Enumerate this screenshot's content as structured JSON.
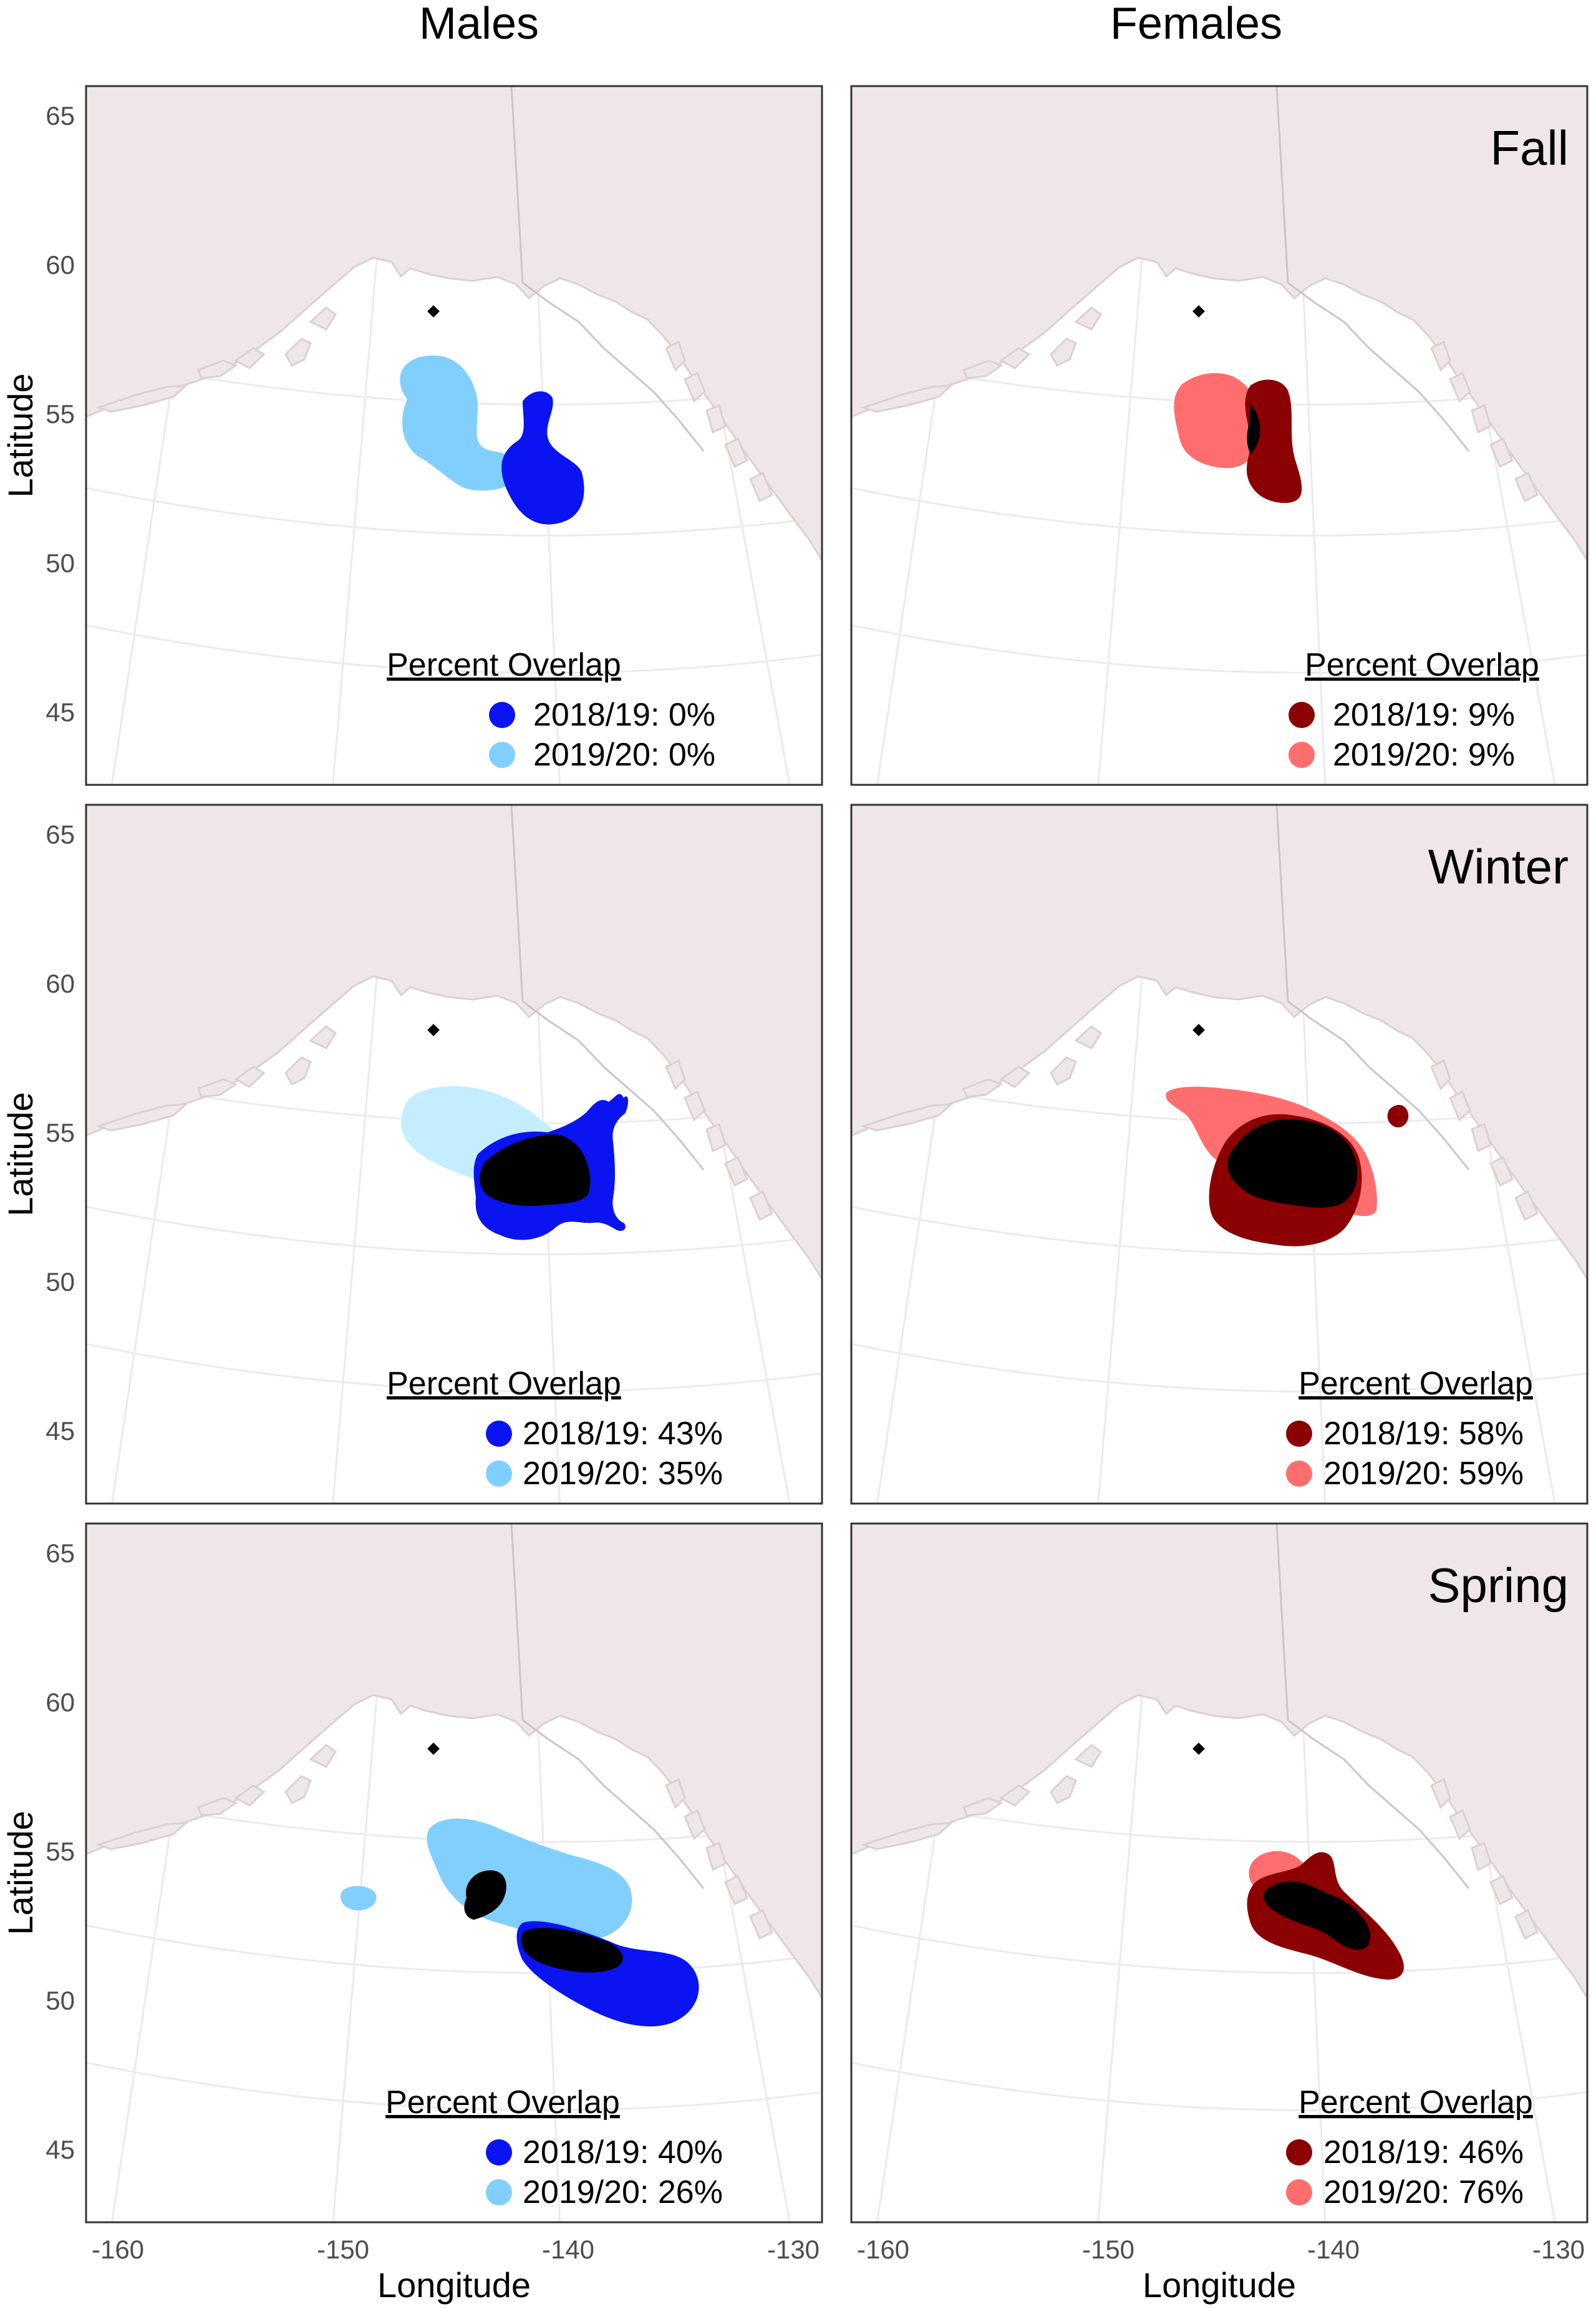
{
  "columns": [
    "Males",
    "Females"
  ],
  "seasons": [
    "Fall",
    "Winter",
    "Spring"
  ],
  "axes": {
    "xlabel": "Longitude",
    "ylabel": "Latitude",
    "x_ticks": [
      "-160",
      "-150",
      "-140",
      "-130"
    ],
    "y_ticks": [
      "65",
      "60",
      "55",
      "50",
      "45"
    ]
  },
  "legend_title": "Percent Overlap",
  "colors": {
    "males_2018_19": "#0a14f0",
    "males_2019_20": "#80cfff",
    "females_2018_19": "#8b0000",
    "females_2019_20": "#ff6e6e",
    "overlap": "#000000",
    "land": "#efe7e7",
    "ocean": "#ffffff"
  },
  "panels": [
    {
      "column": "Males",
      "season": "",
      "legend": [
        "2018/19: 0%",
        "2019/20: 0%"
      ]
    },
    {
      "column": "Females",
      "season": "Fall",
      "legend": [
        "2018/19: 9%",
        "2019/20: 9%"
      ]
    },
    {
      "column": "Males",
      "season": "",
      "legend": [
        "2018/19: 43%",
        "2019/20: 35%"
      ]
    },
    {
      "column": "Females",
      "season": "Winter",
      "legend": [
        "2018/19: 58%",
        "2019/20: 59%"
      ]
    },
    {
      "column": "Males",
      "season": "",
      "legend": [
        "2018/19: 40%",
        "2019/20: 26%"
      ]
    },
    {
      "column": "Females",
      "season": "Spring",
      "legend": [
        "2018/19: 46%",
        "2019/20: 76%"
      ]
    }
  ],
  "chart_data": {
    "type": "map",
    "x_range": [
      -161,
      -129
    ],
    "y_range": [
      43,
      66
    ],
    "deployment_site": {
      "lon": -145.9,
      "lat": 58.4
    },
    "overlap_percent": {
      "Males": {
        "Fall": {
          "2018/19": 0,
          "2019/20": 0
        },
        "Winter": {
          "2018/19": 43,
          "2019/20": 35
        },
        "Spring": {
          "2018/19": 40,
          "2019/20": 26
        }
      },
      "Females": {
        "Fall": {
          "2018/19": 9,
          "2019/20": 9
        },
        "Winter": {
          "2018/19": 58,
          "2019/20": 59
        },
        "Spring": {
          "2018/19": 46,
          "2019/20": 76
        }
      }
    }
  }
}
